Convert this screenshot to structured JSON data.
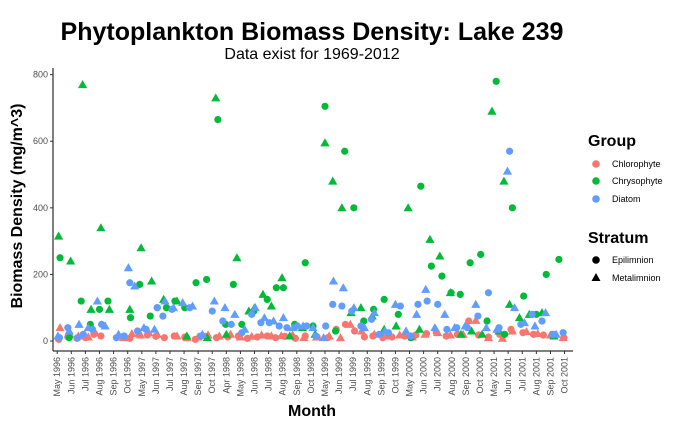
{
  "chart_data": {
    "type": "scatter",
    "title": "Phytoplankton Biomass Density: Lake 239",
    "subtitle": "Data exist for 1969-2012",
    "xlabel": "Month",
    "ylabel": "Biomass Density (mg/m^3)",
    "ylim": [
      -30,
      820
    ],
    "yticks": [
      0,
      200,
      400,
      600,
      800
    ],
    "x_ticks": [
      "May 1996",
      "Jun 1996",
      "Jul 1996",
      "Aug 1996",
      "Sep 1996",
      "Oct 1996",
      "May 1997",
      "Jun 1997",
      "Jul 1997",
      "Aug 1997",
      "Sep 1997",
      "Oct 1997",
      "Apr 1998",
      "May 1998",
      "Jun 1998",
      "Jul 1998",
      "Aug 1998",
      "Sep 1998",
      "Oct 1998",
      "May 1999",
      "Jun 1999",
      "Jul 1999",
      "Aug 1999",
      "Sep 1999",
      "Oct 1999",
      "May 2000",
      "Jun 2000",
      "Jul 2000",
      "Aug 2000",
      "Sep 2000",
      "Oct 2000",
      "May 2001",
      "Jun 2001",
      "Jul 2001",
      "Aug 2001",
      "Sep 2001",
      "Oct 2001"
    ],
    "x_range": [
      -0.3,
      36.6
    ],
    "grid": false,
    "legend_position": "right",
    "legends": {
      "group": {
        "title": "Group",
        "entries": [
          {
            "name": "Chlorophyte",
            "color": "#F8766D"
          },
          {
            "name": "Chrysophyte",
            "color": "#00BA38"
          },
          {
            "name": "Diatom",
            "color": "#619CFF"
          }
        ]
      },
      "stratum": {
        "title": "Stratum",
        "entries": [
          {
            "name": "Epilimnion",
            "shape": "circle"
          },
          {
            "name": "Metalimnion",
            "shape": "triangle"
          }
        ]
      }
    },
    "series": [
      {
        "name": "Chlorophyte",
        "stratum": "Epilimnion",
        "color": "#F8766D",
        "shape": "circle",
        "x": [
          0.1,
          0.75,
          1.4,
          2.0,
          2.6,
          3.1,
          4.6,
          5.15,
          5.8,
          6.4,
          7.0,
          7.6,
          8.3,
          9.05,
          9.8,
          10.55,
          11.3,
          12.1,
          12.85,
          13.5,
          14.2,
          14.9,
          15.5,
          16.15,
          16.9,
          17.6,
          18.45,
          19.2,
          19.8,
          20.45,
          21.1,
          21.8,
          22.4,
          23.1,
          23.75,
          24.65,
          25.45,
          26.2,
          26.9,
          27.6,
          28.4,
          29.2,
          29.9,
          30.6,
          31.4,
          32.2,
          33.05,
          33.8,
          34.5,
          35.2,
          35.95
        ],
        "values": [
          5,
          12,
          8,
          10,
          20,
          15,
          12,
          8,
          20,
          18,
          14,
          10,
          15,
          12,
          5,
          14,
          10,
          12,
          15,
          8,
          12,
          15,
          10,
          14,
          8,
          15,
          12,
          10,
          35,
          50,
          30,
          12,
          15,
          10,
          12,
          15,
          18,
          22,
          25,
          15,
          20,
          60,
          18,
          12,
          20,
          35,
          25,
          20,
          18,
          20,
          10
        ]
      },
      {
        "name": "Chlorophyte",
        "stratum": "Metalimnion",
        "color": "#F8766D",
        "shape": "triangle",
        "x": [
          0.2,
          0.9,
          1.5,
          2.2,
          2.7,
          4.7,
          5.3,
          5.9,
          6.5,
          7.1,
          8.5,
          9.2,
          10.0,
          10.7,
          11.5,
          12.3,
          13.0,
          13.8,
          14.5,
          15.2,
          15.9,
          16.7,
          17.5,
          18.4,
          19.3,
          20.1,
          20.8,
          21.6,
          22.5,
          23.4,
          24.3,
          25.2,
          26.1,
          27.0,
          27.9,
          28.8,
          29.7,
          30.6,
          31.6,
          32.3,
          33.3,
          34.1,
          35.0,
          35.9
        ],
        "values": [
          40,
          20,
          15,
          12,
          25,
          10,
          22,
          18,
          25,
          20,
          15,
          10,
          12,
          18,
          15,
          20,
          12,
          14,
          18,
          15,
          16,
          18,
          10,
          12,
          15,
          10,
          50,
          30,
          20,
          15,
          18,
          12,
          20,
          25,
          18,
          20,
          62,
          10,
          8,
          30,
          28,
          22,
          18,
          10
        ]
      },
      {
        "name": "Chrysophyte",
        "stratum": "Epilimnion",
        "color": "#00BA38",
        "shape": "circle",
        "x": [
          0.2,
          0.85,
          1.7,
          2.35,
          3.0,
          3.6,
          5.2,
          5.85,
          6.6,
          7.1,
          7.75,
          8.35,
          9.05,
          9.85,
          10.6,
          11.4,
          11.95,
          12.5,
          13.1,
          13.95,
          14.9,
          15.55,
          16.05,
          16.85,
          17.6,
          18.15,
          19.0,
          19.75,
          20.4,
          21.05,
          21.75,
          22.45,
          23.2,
          24.2,
          25.1,
          25.8,
          26.55,
          27.3,
          27.95,
          28.6,
          29.3,
          30.05,
          30.5,
          31.15,
          31.75,
          32.3,
          33.1,
          34.0,
          34.7,
          35.6
        ],
        "values": [
          250,
          10,
          120,
          50,
          95,
          120,
          70,
          170,
          75,
          100,
          100,
          120,
          100,
          175,
          185,
          665,
          50,
          170,
          50,
          90,
          125,
          160,
          160,
          50,
          235,
          45,
          705,
          30,
          570,
          400,
          60,
          95,
          125,
          80,
          10,
          465,
          225,
          195,
          145,
          140,
          235,
          260,
          60,
          780,
          20,
          400,
          135,
          80,
          200,
          245
        ]
      },
      {
        "name": "Chrysophyte",
        "stratum": "Metalimnion",
        "color": "#00BA38",
        "shape": "triangle",
        "x": [
          0.1,
          0.95,
          1.8,
          2.4,
          3.1,
          3.7,
          5.15,
          5.95,
          6.7,
          7.55,
          8.5,
          9.2,
          10.65,
          11.25,
          12.0,
          12.75,
          13.6,
          14.0,
          14.6,
          15.2,
          15.95,
          16.5,
          17.4,
          18.3,
          19.0,
          19.55,
          20.2,
          20.85,
          21.55,
          22.35,
          23.2,
          24.05,
          24.9,
          25.7,
          26.45,
          27.15,
          27.9,
          28.65,
          29.4,
          30.15,
          30.85,
          31.35,
          31.7,
          32.1,
          32.8,
          33.5,
          34.4,
          35.25
        ],
        "values": [
          315,
          240,
          770,
          95,
          340,
          95,
          95,
          280,
          180,
          125,
          120,
          15,
          10,
          730,
          20,
          250,
          90,
          100,
          140,
          105,
          190,
          15,
          40,
          20,
          595,
          480,
          400,
          85,
          100,
          75,
          35,
          45,
          400,
          35,
          305,
          255,
          145,
          20,
          30,
          20,
          690,
          30,
          480,
          110,
          70,
          80,
          85,
          15
        ]
      },
      {
        "name": "Diatom",
        "stratum": "Epilimnion",
        "color": "#619CFF",
        "shape": "circle",
        "x": [
          0.15,
          0.75,
          1.45,
          1.85,
          2.5,
          3.15,
          4.2,
          4.75,
          5.15,
          5.7,
          6.3,
          7.1,
          7.5,
          8.15,
          9.4,
          10.2,
          11.0,
          11.75,
          12.35,
          13.1,
          13.8,
          14.45,
          15.05,
          15.75,
          16.3,
          17.05,
          17.7,
          18.35,
          19.05,
          19.55,
          20.2,
          20.9,
          21.55,
          22.3,
          22.85,
          23.5,
          24.35,
          25.1,
          25.6,
          26.25,
          27.0,
          27.65,
          28.35,
          29.1,
          29.85,
          30.6,
          31.35,
          32.1,
          32.9,
          33.7,
          34.4,
          35.15,
          35.9
        ],
        "values": [
          10,
          40,
          10,
          20,
          35,
          50,
          10,
          15,
          175,
          30,
          35,
          100,
          75,
          95,
          100,
          15,
          90,
          60,
          50,
          25,
          80,
          55,
          55,
          45,
          40,
          45,
          45,
          15,
          45,
          110,
          105,
          90,
          45,
          65,
          20,
          25,
          105,
          15,
          110,
          120,
          110,
          35,
          40,
          40,
          75,
          145,
          40,
          570,
          50,
          80,
          60,
          20,
          25
        ]
      },
      {
        "name": "Diatom",
        "stratum": "Metalimnion",
        "color": "#619CFF",
        "shape": "triangle",
        "x": [
          0.05,
          0.85,
          1.55,
          2.2,
          2.85,
          3.4,
          4.35,
          5.05,
          5.5,
          6.15,
          6.9,
          7.65,
          8.25,
          8.9,
          9.6,
          10.3,
          11.15,
          11.9,
          12.6,
          13.3,
          14.05,
          14.7,
          15.35,
          16.05,
          16.75,
          17.45,
          18.15,
          18.9,
          19.6,
          20.3,
          21.05,
          21.8,
          22.5,
          23.25,
          24.0,
          24.75,
          25.5,
          26.15,
          26.8,
          27.5,
          28.2,
          28.95,
          29.7,
          30.45,
          31.2,
          31.95,
          32.45,
          33.15,
          33.9,
          34.65,
          35.4
        ],
        "values": [
          15,
          30,
          50,
          40,
          120,
          45,
          20,
          220,
          165,
          40,
          35,
          120,
          100,
          115,
          105,
          20,
          120,
          100,
          80,
          35,
          100,
          70,
          60,
          70,
          40,
          45,
          40,
          10,
          180,
          160,
          100,
          40,
          85,
          30,
          110,
          30,
          80,
          155,
          40,
          80,
          40,
          45,
          110,
          40,
          35,
          510,
          100,
          55,
          45,
          85,
          20
        ]
      }
    ]
  }
}
